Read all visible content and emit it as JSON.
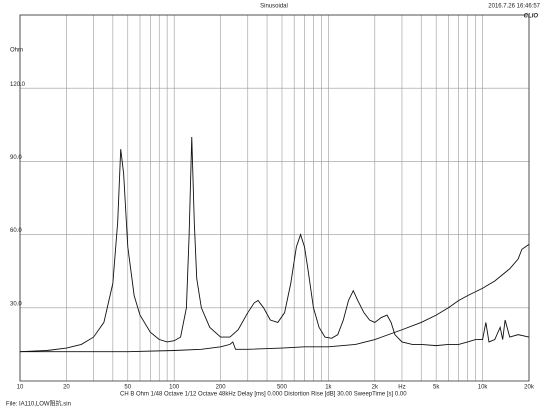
{
  "chart_data": {
    "type": "line",
    "title": "Sinusoidal",
    "timestamp": "2016.7.26 16:46:57",
    "logo": "CLIO",
    "ylabel": "Ohm",
    "xlabel": "Hz",
    "footer": "CH B  Ohm  1/48 Octave  1/12 Octave  48kHz  Delay [ms] 0.000  Distortion Rise [dB] 30.00  SweepTime [s] 0.00",
    "file": "File: IA110,LOW阻抗.sin",
    "xlog": true,
    "grid": true,
    "xlim": [
      10,
      20000
    ],
    "ylim": [
      0,
      150
    ],
    "xticks": [
      10,
      20,
      50,
      100,
      200,
      500,
      {
        "value": 1000,
        "label": "1k"
      },
      {
        "value": 2000,
        "label": "2k"
      },
      {
        "value": 5000,
        "label": "5k"
      },
      {
        "value": 10000,
        "label": "10k"
      },
      {
        "value": 20000,
        "label": "20k"
      }
    ],
    "xgrid": [
      30,
      40,
      60,
      70,
      80,
      90,
      300,
      400,
      600,
      700,
      800,
      900,
      3000,
      4000,
      6000,
      7000,
      8000,
      9000
    ],
    "yticks": [
      {
        "value": 30,
        "label": "30.0"
      },
      {
        "value": 60,
        "label": "60.0"
      },
      {
        "value": 90,
        "label": "90.0"
      },
      {
        "value": 120,
        "label": "120.0"
      },
      150
    ],
    "series": [
      {
        "color": "#111111",
        "x": [
          10,
          15,
          20,
          25,
          30,
          35,
          40,
          43,
          45,
          47,
          50,
          55,
          60,
          70,
          80,
          90,
          100,
          110,
          120,
          125,
          130,
          135,
          140,
          150,
          170,
          200,
          230,
          260,
          300,
          330,
          350,
          380,
          420,
          470,
          520,
          570,
          620,
          660,
          700,
          740,
          800,
          870,
          950,
          1050,
          1150,
          1250,
          1350,
          1450,
          1550,
          1700,
          1850,
          2000,
          2200,
          2400,
          2550,
          2700,
          3000,
          3500,
          4000,
          5000,
          6000,
          7000,
          8000,
          9000,
          10000,
          10500,
          11000,
          12000,
          13000,
          13500,
          14000,
          15000,
          17000,
          20000
        ],
        "values": [
          12,
          12.5,
          13.5,
          15,
          18,
          24,
          40,
          65,
          95,
          85,
          55,
          35,
          27,
          20,
          17,
          16,
          16.5,
          18,
          30,
          60,
          100,
          65,
          42,
          30,
          22,
          18,
          18,
          21,
          28,
          32,
          33,
          30,
          25,
          24,
          28,
          40,
          55,
          60,
          55,
          45,
          30,
          22,
          18,
          17.5,
          19,
          25,
          33,
          37,
          33,
          28,
          25,
          24,
          26,
          27,
          24,
          19,
          16,
          15,
          15,
          14.5,
          15,
          15,
          16,
          17,
          17,
          24,
          16,
          17,
          22,
          17,
          25,
          18,
          19,
          18
        ]
      },
      {
        "color": "#111111",
        "x": [
          10,
          50,
          100,
          150,
          200,
          230,
          240,
          250,
          300,
          500,
          700,
          1000,
          1500,
          2000,
          3000,
          4000,
          5000,
          6000,
          7000,
          8000,
          10000,
          12000,
          15000,
          17000,
          18000,
          20000
        ],
        "values": [
          12,
          12,
          12.5,
          13,
          14,
          15,
          16,
          13,
          13,
          13.5,
          14,
          14,
          15,
          17,
          21,
          24,
          27,
          30,
          33,
          35,
          38,
          41,
          46,
          50,
          54,
          56
        ]
      }
    ]
  }
}
